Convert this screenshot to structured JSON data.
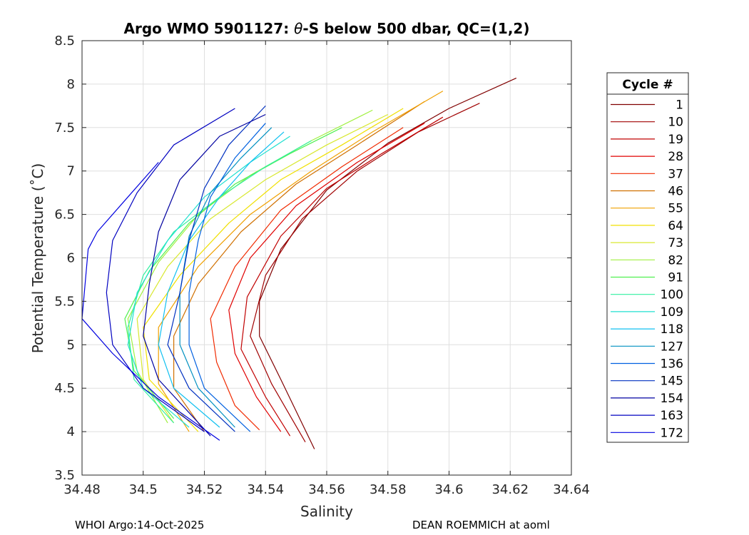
{
  "chart_data": {
    "type": "line",
    "title": "Argo WMO 5901127: θ-S below 500 dbar,  QC=(1,2)",
    "title_parts": {
      "prefix": "Argo WMO 5901127: ",
      "theta": "θ",
      "suffix": "-S below 500 dbar,  QC=(1,2)"
    },
    "xlabel": "Salinity",
    "ylabel": "Potential Temperature (˚C)",
    "xlim": [
      34.48,
      34.64
    ],
    "ylim": [
      3.5,
      8.5
    ],
    "xticks": [
      34.48,
      34.5,
      34.52,
      34.54,
      34.56,
      34.58,
      34.6,
      34.62,
      34.64
    ],
    "xtick_labels": [
      "34.48",
      "34.5",
      "34.52",
      "34.54",
      "34.56",
      "34.58",
      "34.6",
      "34.62",
      "34.64"
    ],
    "yticks": [
      3.5,
      4,
      4.5,
      5,
      5.5,
      6,
      6.5,
      7,
      7.5,
      8,
      8.5
    ],
    "ytick_labels": [
      "3.5",
      "4",
      "4.5",
      "5",
      "5.5",
      "6",
      "6.5",
      "7",
      "7.5",
      "8",
      "8.5"
    ],
    "grid": true,
    "legend": {
      "title": "Cycle #",
      "position": "right",
      "entries": [
        {
          "label": "1",
          "color": "#800000"
        },
        {
          "label": "10",
          "color": "#a00000"
        },
        {
          "label": "19",
          "color": "#c00000"
        },
        {
          "label": "28",
          "color": "#e00000"
        },
        {
          "label": "37",
          "color": "#f02a00"
        },
        {
          "label": "46",
          "color": "#d07000"
        },
        {
          "label": "55",
          "color": "#f0a000"
        },
        {
          "label": "64",
          "color": "#f0e000"
        },
        {
          "label": "73",
          "color": "#d8e830"
        },
        {
          "label": "82",
          "color": "#a0f040"
        },
        {
          "label": "91",
          "color": "#50f050"
        },
        {
          "label": "100",
          "color": "#30f0a0"
        },
        {
          "label": "109",
          "color": "#20e0d0"
        },
        {
          "label": "118",
          "color": "#10c0f0"
        },
        {
          "label": "127",
          "color": "#0090c0"
        },
        {
          "label": "136",
          "color": "#0060e0"
        },
        {
          "label": "145",
          "color": "#0030c0"
        },
        {
          "label": "154",
          "color": "#0000a0"
        },
        {
          "label": "163",
          "color": "#0000c0"
        },
        {
          "label": "172",
          "color": "#0000e0"
        }
      ]
    },
    "series": [
      {
        "name": "1",
        "color": "#800000",
        "points": [
          [
            34.622,
            8.07
          ],
          [
            34.6,
            7.72
          ],
          [
            34.58,
            7.32
          ],
          [
            34.56,
            6.78
          ],
          [
            34.545,
            6.1
          ],
          [
            34.538,
            5.5
          ],
          [
            34.538,
            5.1
          ],
          [
            34.545,
            4.6
          ],
          [
            34.556,
            3.8
          ]
        ]
      },
      {
        "name": "10",
        "color": "#a00000",
        "points": [
          [
            34.61,
            7.78
          ],
          [
            34.59,
            7.45
          ],
          [
            34.57,
            7.0
          ],
          [
            34.552,
            6.45
          ],
          [
            34.54,
            5.8
          ],
          [
            34.535,
            5.1
          ],
          [
            34.542,
            4.55
          ],
          [
            34.553,
            3.88
          ]
        ]
      },
      {
        "name": "19",
        "color": "#c00000",
        "points": [
          [
            34.598,
            7.62
          ],
          [
            34.578,
            7.2
          ],
          [
            34.56,
            6.8
          ],
          [
            34.545,
            6.25
          ],
          [
            34.534,
            5.55
          ],
          [
            34.532,
            4.95
          ],
          [
            34.54,
            4.4
          ],
          [
            34.548,
            3.95
          ]
        ]
      },
      {
        "name": "28",
        "color": "#e00000",
        "points": [
          [
            34.592,
            7.55
          ],
          [
            34.57,
            7.1
          ],
          [
            34.55,
            6.6
          ],
          [
            34.535,
            6.0
          ],
          [
            34.528,
            5.4
          ],
          [
            34.53,
            4.9
          ],
          [
            34.537,
            4.4
          ],
          [
            34.545,
            4.0
          ]
        ]
      },
      {
        "name": "37",
        "color": "#f02a00",
        "points": [
          [
            34.585,
            7.5
          ],
          [
            34.565,
            7.05
          ],
          [
            34.545,
            6.55
          ],
          [
            34.53,
            5.9
          ],
          [
            34.522,
            5.3
          ],
          [
            34.524,
            4.8
          ],
          [
            34.53,
            4.3
          ],
          [
            34.538,
            4.02
          ]
        ]
      },
      {
        "name": "46",
        "color": "#d07000",
        "points": [
          [
            34.592,
            7.8
          ],
          [
            34.57,
            7.3
          ],
          [
            34.55,
            6.85
          ],
          [
            34.532,
            6.3
          ],
          [
            34.518,
            5.7
          ],
          [
            34.51,
            5.1
          ],
          [
            34.51,
            4.5
          ],
          [
            34.52,
            4.0
          ]
        ]
      },
      {
        "name": "55",
        "color": "#f0a000",
        "points": [
          [
            34.598,
            7.92
          ],
          [
            34.575,
            7.45
          ],
          [
            34.555,
            7.0
          ],
          [
            34.535,
            6.5
          ],
          [
            34.518,
            5.9
          ],
          [
            34.505,
            5.2
          ],
          [
            34.505,
            4.55
          ],
          [
            34.515,
            4.0
          ]
        ]
      },
      {
        "name": "64",
        "color": "#f0e000",
        "points": [
          [
            34.585,
            7.72
          ],
          [
            34.565,
            7.3
          ],
          [
            34.545,
            6.9
          ],
          [
            34.528,
            6.4
          ],
          [
            34.512,
            5.8
          ],
          [
            34.5,
            5.2
          ],
          [
            34.502,
            4.6
          ],
          [
            34.518,
            4.0
          ]
        ]
      },
      {
        "name": "73",
        "color": "#d8e830",
        "points": [
          [
            34.58,
            7.65
          ],
          [
            34.56,
            7.3
          ],
          [
            34.54,
            6.9
          ],
          [
            34.522,
            6.45
          ],
          [
            34.508,
            5.9
          ],
          [
            34.498,
            5.3
          ],
          [
            34.5,
            4.6
          ],
          [
            34.51,
            4.1
          ]
        ]
      },
      {
        "name": "82",
        "color": "#a0f040",
        "points": [
          [
            34.575,
            7.7
          ],
          [
            34.555,
            7.35
          ],
          [
            34.535,
            6.95
          ],
          [
            34.518,
            6.5
          ],
          [
            34.505,
            5.95
          ],
          [
            34.495,
            5.3
          ],
          [
            34.498,
            4.7
          ],
          [
            34.508,
            4.1
          ]
        ]
      },
      {
        "name": "91",
        "color": "#50f050",
        "points": [
          [
            34.565,
            7.5
          ],
          [
            34.548,
            7.2
          ],
          [
            34.53,
            6.85
          ],
          [
            34.515,
            6.4
          ],
          [
            34.502,
            5.85
          ],
          [
            34.494,
            5.3
          ],
          [
            34.497,
            4.7
          ],
          [
            34.51,
            4.15
          ]
        ]
      },
      {
        "name": "100",
        "color": "#30f0a0",
        "points": [
          [
            34.555,
            7.35
          ],
          [
            34.54,
            7.05
          ],
          [
            34.525,
            6.7
          ],
          [
            34.51,
            6.3
          ],
          [
            34.5,
            5.8
          ],
          [
            34.495,
            5.2
          ],
          [
            34.497,
            4.6
          ],
          [
            34.51,
            4.1
          ]
        ]
      },
      {
        "name": "109",
        "color": "#20e0d0",
        "points": [
          [
            34.548,
            7.4
          ],
          [
            34.535,
            7.1
          ],
          [
            34.52,
            6.7
          ],
          [
            34.508,
            6.2
          ],
          [
            34.498,
            5.6
          ],
          [
            34.495,
            5.0
          ],
          [
            34.5,
            4.5
          ],
          [
            34.515,
            4.05
          ]
        ]
      },
      {
        "name": "118",
        "color": "#10c0f0",
        "points": [
          [
            34.546,
            7.45
          ],
          [
            34.535,
            7.1
          ],
          [
            34.525,
            6.7
          ],
          [
            34.515,
            6.2
          ],
          [
            34.508,
            5.6
          ],
          [
            34.505,
            5.0
          ],
          [
            34.51,
            4.5
          ],
          [
            34.525,
            4.05
          ]
        ]
      },
      {
        "name": "127",
        "color": "#0090c0",
        "points": [
          [
            34.542,
            7.5
          ],
          [
            34.532,
            7.15
          ],
          [
            34.522,
            6.75
          ],
          [
            34.515,
            6.25
          ],
          [
            34.512,
            5.6
          ],
          [
            34.512,
            5.0
          ],
          [
            34.518,
            4.5
          ],
          [
            34.53,
            4.05
          ]
        ]
      },
      {
        "name": "136",
        "color": "#0060e0",
        "points": [
          [
            34.54,
            7.55
          ],
          [
            34.53,
            7.15
          ],
          [
            34.522,
            6.7
          ],
          [
            34.518,
            6.2
          ],
          [
            34.515,
            5.6
          ],
          [
            34.515,
            5.0
          ],
          [
            34.52,
            4.5
          ],
          [
            34.535,
            4.0
          ]
        ]
      },
      {
        "name": "145",
        "color": "#0030c0",
        "points": [
          [
            34.54,
            7.75
          ],
          [
            34.528,
            7.3
          ],
          [
            34.52,
            6.8
          ],
          [
            34.515,
            6.2
          ],
          [
            34.512,
            5.6
          ],
          [
            34.508,
            5.0
          ],
          [
            34.515,
            4.5
          ],
          [
            34.53,
            4.0
          ]
        ]
      },
      {
        "name": "154",
        "color": "#0000a0",
        "points": [
          [
            34.54,
            7.65
          ],
          [
            34.525,
            7.4
          ],
          [
            34.512,
            6.9
          ],
          [
            34.505,
            6.3
          ],
          [
            34.502,
            5.7
          ],
          [
            34.5,
            5.1
          ],
          [
            34.505,
            4.6
          ],
          [
            34.522,
            3.95
          ]
        ]
      },
      {
        "name": "163",
        "color": "#0000c0",
        "points": [
          [
            34.53,
            7.72
          ],
          [
            34.51,
            7.3
          ],
          [
            34.498,
            6.75
          ],
          [
            34.49,
            6.2
          ],
          [
            34.488,
            5.6
          ],
          [
            34.49,
            5.0
          ],
          [
            34.5,
            4.5
          ],
          [
            34.52,
            4.0
          ]
        ]
      },
      {
        "name": "172",
        "color": "#0000e0",
        "points": [
          [
            34.505,
            7.1
          ],
          [
            34.495,
            6.7
          ],
          [
            34.485,
            6.3
          ],
          [
            34.482,
            6.1
          ],
          [
            34.48,
            5.3
          ],
          [
            34.49,
            4.9
          ],
          [
            34.505,
            4.4
          ],
          [
            34.525,
            3.9
          ]
        ]
      }
    ]
  },
  "footer": {
    "left": "WHOI Argo:14-Oct-2025",
    "right": "DEAN ROEMMICH at aoml"
  }
}
